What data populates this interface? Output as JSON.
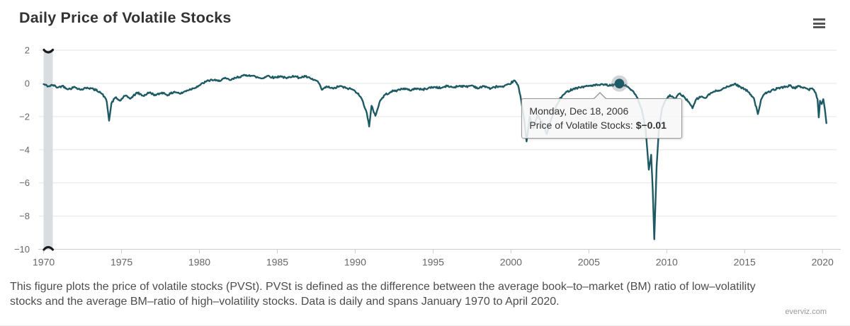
{
  "header": {
    "title": "Daily Price of Volatile Stocks"
  },
  "toolbar": {
    "menu_icon": "hamburger-menu-icon"
  },
  "chart_data": {
    "type": "line",
    "title": "Daily Price of Volatile Stocks",
    "xlabel": "",
    "ylabel": "",
    "xlim": [
      1969.7,
      2020.9
    ],
    "ylim": [
      -10,
      2
    ],
    "x_ticks": [
      1970,
      1975,
      1980,
      1985,
      1990,
      1995,
      2000,
      2005,
      2010,
      2015,
      2020
    ],
    "y_ticks": [
      2,
      0,
      -2,
      -4,
      -6,
      -8,
      -10
    ],
    "grid": true,
    "legend": false,
    "series": [
      {
        "name": "Price of Volatile Stocks",
        "color": "#1e5a63",
        "points": [
          [
            1970.0,
            -0.05
          ],
          [
            1970.3,
            -0.18
          ],
          [
            1970.6,
            -0.1
          ],
          [
            1970.9,
            -0.25
          ],
          [
            1971.2,
            -0.15
          ],
          [
            1971.6,
            -0.35
          ],
          [
            1972.0,
            -0.22
          ],
          [
            1972.4,
            -0.38
          ],
          [
            1972.8,
            -0.25
          ],
          [
            1973.2,
            -0.35
          ],
          [
            1973.6,
            -0.5
          ],
          [
            1973.9,
            -0.8
          ],
          [
            1974.05,
            -1.1
          ],
          [
            1974.2,
            -2.25
          ],
          [
            1974.35,
            -1.2
          ],
          [
            1974.6,
            -0.85
          ],
          [
            1974.9,
            -1.05
          ],
          [
            1975.2,
            -0.75
          ],
          [
            1975.6,
            -0.9
          ],
          [
            1976.0,
            -0.55
          ],
          [
            1976.4,
            -0.75
          ],
          [
            1976.8,
            -0.55
          ],
          [
            1977.2,
            -0.72
          ],
          [
            1977.6,
            -0.55
          ],
          [
            1978.0,
            -0.7
          ],
          [
            1978.4,
            -0.5
          ],
          [
            1978.8,
            -0.62
          ],
          [
            1979.2,
            -0.42
          ],
          [
            1979.6,
            -0.3
          ],
          [
            1980.0,
            -0.12
          ],
          [
            1980.4,
            0.1
          ],
          [
            1980.8,
            0.22
          ],
          [
            1981.2,
            0.14
          ],
          [
            1981.6,
            0.3
          ],
          [
            1982.0,
            0.2
          ],
          [
            1982.4,
            0.36
          ],
          [
            1982.8,
            0.46
          ],
          [
            1983.2,
            0.5
          ],
          [
            1983.6,
            0.4
          ],
          [
            1984.0,
            0.3
          ],
          [
            1984.4,
            0.46
          ],
          [
            1984.8,
            0.34
          ],
          [
            1985.2,
            0.44
          ],
          [
            1985.6,
            0.3
          ],
          [
            1986.0,
            0.46
          ],
          [
            1986.4,
            0.34
          ],
          [
            1986.8,
            0.42
          ],
          [
            1987.2,
            0.26
          ],
          [
            1987.6,
            0.12
          ],
          [
            1987.85,
            -0.38
          ],
          [
            1988.2,
            -0.2
          ],
          [
            1988.6,
            -0.32
          ],
          [
            1989.0,
            -0.16
          ],
          [
            1989.4,
            -0.28
          ],
          [
            1989.8,
            -0.35
          ],
          [
            1990.2,
            -0.6
          ],
          [
            1990.5,
            -1.1
          ],
          [
            1990.75,
            -1.8
          ],
          [
            1990.9,
            -2.6
          ],
          [
            1991.05,
            -1.35
          ],
          [
            1991.3,
            -1.95
          ],
          [
            1991.6,
            -1.05
          ],
          [
            1991.9,
            -0.7
          ],
          [
            1992.3,
            -0.5
          ],
          [
            1992.7,
            -0.42
          ],
          [
            1993.1,
            -0.3
          ],
          [
            1993.5,
            -0.42
          ],
          [
            1993.9,
            -0.3
          ],
          [
            1994.3,
            -0.38
          ],
          [
            1994.7,
            -0.28
          ],
          [
            1995.1,
            -0.22
          ],
          [
            1995.5,
            -0.28
          ],
          [
            1995.9,
            -0.16
          ],
          [
            1996.3,
            -0.24
          ],
          [
            1996.7,
            -0.14
          ],
          [
            1997.1,
            -0.2
          ],
          [
            1997.5,
            -0.12
          ],
          [
            1997.9,
            -0.3
          ],
          [
            1998.3,
            -0.16
          ],
          [
            1998.7,
            -0.32
          ],
          [
            1999.1,
            -0.18
          ],
          [
            1999.5,
            -0.22
          ],
          [
            1999.9,
            -0.05
          ],
          [
            2000.2,
            0.18
          ],
          [
            2000.45,
            -0.1
          ],
          [
            2000.65,
            -1.0
          ],
          [
            2000.85,
            -2.2
          ],
          [
            2001.0,
            -3.5
          ],
          [
            2001.2,
            -2.0
          ],
          [
            2001.45,
            -2.7
          ],
          [
            2001.7,
            -1.9
          ],
          [
            2002.0,
            -2.4
          ],
          [
            2002.3,
            -3.05
          ],
          [
            2002.6,
            -2.1
          ],
          [
            2002.9,
            -1.4
          ],
          [
            2003.2,
            -0.85
          ],
          [
            2003.6,
            -0.5
          ],
          [
            2004.0,
            -0.32
          ],
          [
            2004.4,
            -0.24
          ],
          [
            2004.8,
            -0.18
          ],
          [
            2005.2,
            -0.12
          ],
          [
            2005.6,
            -0.1
          ],
          [
            2006.0,
            -0.08
          ],
          [
            2006.4,
            -0.14
          ],
          [
            2006.7,
            -0.06
          ],
          [
            2006.96,
            -0.01
          ],
          [
            2007.2,
            -0.08
          ],
          [
            2007.5,
            -0.2
          ],
          [
            2007.8,
            -0.45
          ],
          [
            2008.1,
            -0.85
          ],
          [
            2008.4,
            -1.6
          ],
          [
            2008.65,
            -2.8
          ],
          [
            2008.85,
            -5.2
          ],
          [
            2009.0,
            -4.3
          ],
          [
            2009.1,
            -6.4
          ],
          [
            2009.2,
            -9.4
          ],
          [
            2009.35,
            -5.0
          ],
          [
            2009.5,
            -2.7
          ],
          [
            2009.7,
            -1.5
          ],
          [
            2009.9,
            -1.05
          ],
          [
            2010.2,
            -0.7
          ],
          [
            2010.5,
            -0.95
          ],
          [
            2010.8,
            -0.62
          ],
          [
            2011.1,
            -0.8
          ],
          [
            2011.4,
            -1.1
          ],
          [
            2011.65,
            -1.5
          ],
          [
            2011.9,
            -0.95
          ],
          [
            2012.2,
            -0.8
          ],
          [
            2012.5,
            -0.88
          ],
          [
            2012.8,
            -0.6
          ],
          [
            2013.2,
            -0.45
          ],
          [
            2013.6,
            -0.32
          ],
          [
            2014.0,
            -0.18
          ],
          [
            2014.35,
            -0.02
          ],
          [
            2014.7,
            -0.2
          ],
          [
            2015.0,
            -0.35
          ],
          [
            2015.3,
            -0.55
          ],
          [
            2015.6,
            -0.9
          ],
          [
            2015.85,
            -1.85
          ],
          [
            2016.05,
            -1.0
          ],
          [
            2016.3,
            -0.62
          ],
          [
            2016.7,
            -0.45
          ],
          [
            2017.1,
            -0.3
          ],
          [
            2017.5,
            -0.22
          ],
          [
            2017.9,
            -0.14
          ],
          [
            2018.2,
            -0.28
          ],
          [
            2018.5,
            -0.18
          ],
          [
            2018.8,
            -0.24
          ],
          [
            2019.1,
            -0.38
          ],
          [
            2019.35,
            -0.3
          ],
          [
            2019.55,
            -0.55
          ],
          [
            2019.68,
            -0.95
          ],
          [
            2019.76,
            -2.05
          ],
          [
            2019.84,
            -1.05
          ],
          [
            2019.95,
            -1.25
          ],
          [
            2020.05,
            -0.95
          ],
          [
            2020.15,
            -1.55
          ],
          [
            2020.25,
            -2.4
          ]
        ]
      }
    ],
    "selected_point": {
      "x": 2006.96,
      "y": -0.01
    }
  },
  "tooltip": {
    "date_line": "Monday, Dec 18, 2006",
    "series_label": "Price of Volatile Stocks:",
    "value": "$−0.01"
  },
  "caption": {
    "line1": "This figure plots the price of volatile stocks (PVSt). PVSt is defined as the difference between the average book–to–market (BM) ratio of low–volatility",
    "line2": "stocks and the average BM–ratio of high–volatility stocks. Data is daily and spans January 1970 to April 2020."
  },
  "credit": "everviz.com",
  "colors": {
    "line": "#1e5a63",
    "grid": "#e6e6e6",
    "axis_line": "#cccccc",
    "tick_label": "#666666",
    "scrollbar": "#d8dde1",
    "scrollbar_arrow": "#1a1a1a",
    "tooltip_border": "#999999",
    "halo": "rgba(110,120,130,0.32)"
  }
}
